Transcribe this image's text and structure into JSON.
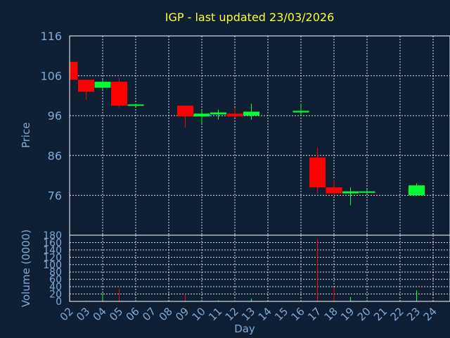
{
  "colors": {
    "background": "#0f1f33",
    "up": "#00ff33",
    "down": "#ff0000",
    "title": "#ffff33",
    "label": "#7fa9d6",
    "grid": "#ffffff"
  },
  "chart_data": {
    "type": "candlestick",
    "title": "IGP - last updated 23/03/2026",
    "xlabel": "Day",
    "ylabel": "Price",
    "volume_label": "Volume (0000)",
    "grid": true,
    "price_axis": {
      "ylim": [
        66,
        116
      ],
      "ticks": [
        "116",
        "106",
        "96",
        "86",
        "76"
      ]
    },
    "volume_axis": {
      "ylim": [
        0,
        180
      ],
      "ticks": [
        "180",
        "160",
        "140",
        "120",
        "100",
        "80",
        "60",
        "40",
        "20",
        "0"
      ]
    },
    "days": [
      "02",
      "03",
      "04",
      "05",
      "06",
      "07",
      "08",
      "09",
      "10",
      "11",
      "12",
      "13",
      "14",
      "15",
      "16",
      "17",
      "18",
      "19",
      "20",
      "21",
      "22",
      "23",
      "24"
    ],
    "candles": [
      {
        "day": "02",
        "open": 109.5,
        "close": 105.0,
        "high": 109.5,
        "low": 105.0,
        "volume": 0
      },
      {
        "day": "03",
        "open": 105.0,
        "close": 102.0,
        "high": 105.0,
        "low": 100.0,
        "volume": 3
      },
      {
        "day": "04",
        "open": 103.0,
        "close": 104.5,
        "high": 105.0,
        "low": 102.5,
        "volume": 22
      },
      {
        "day": "05",
        "open": 104.5,
        "close": 98.5,
        "high": 105.5,
        "low": 98.0,
        "volume": 35
      },
      {
        "day": "06",
        "open": 98.5,
        "close": 98.8,
        "high": 99.0,
        "low": 98.3,
        "volume": 5
      },
      {
        "day": "09",
        "open": 98.5,
        "close": 95.8,
        "high": 98.5,
        "low": 93.0,
        "volume": 20
      },
      {
        "day": "10",
        "open": 95.8,
        "close": 96.5,
        "high": 97.5,
        "low": 94.0,
        "volume": 5
      },
      {
        "day": "11",
        "open": 96.3,
        "close": 96.8,
        "high": 97.5,
        "low": 95.0,
        "volume": 3
      },
      {
        "day": "12",
        "open": 96.5,
        "close": 95.8,
        "high": 98.0,
        "low": 95.5,
        "volume": 3
      },
      {
        "day": "13",
        "open": 96.0,
        "close": 97.0,
        "high": 99.0,
        "low": 95.0,
        "volume": 8
      },
      {
        "day": "16",
        "open": 96.8,
        "close": 97.2,
        "high": 99.0,
        "low": 96.0,
        "volume": 3
      },
      {
        "day": "17",
        "open": 85.5,
        "close": 78.0,
        "high": 88.0,
        "low": 76.5,
        "volume": 170
      },
      {
        "day": "18",
        "open": 78.0,
        "close": 76.5,
        "high": 80.0,
        "low": 76.0,
        "volume": 38
      },
      {
        "day": "19",
        "open": 76.5,
        "close": 77.0,
        "high": 78.0,
        "low": 73.5,
        "volume": 12
      },
      {
        "day": "20",
        "open": 76.8,
        "close": 77.0,
        "high": 77.5,
        "low": 76.5,
        "volume": 5
      },
      {
        "day": "23",
        "open": 76.0,
        "close": 78.5,
        "high": 79.0,
        "low": 76.0,
        "volume": 30
      }
    ]
  }
}
